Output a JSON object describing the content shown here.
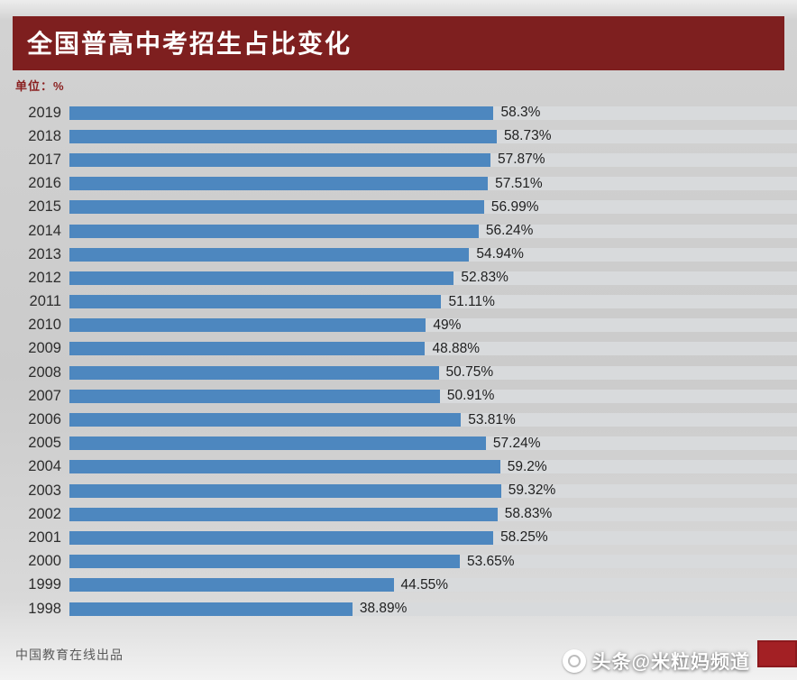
{
  "page": {
    "title": "全国普高中考招生占比变化",
    "unit_label": "单位：%",
    "footer": "中国教育在线出品",
    "watermark": "头条@米粒妈频道"
  },
  "colors": {
    "header_bg": "#7e1f1f",
    "unit_text": "#8a1f1f",
    "bar_color": "#4d87bf",
    "track_color": "#d8dadc",
    "stamp_color": "#a32024"
  },
  "chart_data": {
    "type": "bar",
    "orientation": "horizontal",
    "title": "全国普高中考招生占比变化",
    "unit": "%",
    "xlim": [
      0,
      100
    ],
    "grid": false,
    "legend": "none",
    "categories": [
      "2019",
      "2018",
      "2017",
      "2016",
      "2015",
      "2014",
      "2013",
      "2012",
      "2011",
      "2010",
      "2009",
      "2008",
      "2007",
      "2006",
      "2005",
      "2004",
      "2003",
      "2002",
      "2001",
      "2000",
      "1999",
      "1998"
    ],
    "values": [
      58.3,
      58.73,
      57.87,
      57.51,
      56.99,
      56.24,
      54.94,
      52.83,
      51.11,
      49,
      48.88,
      50.75,
      50.91,
      53.81,
      57.24,
      59.2,
      59.32,
      58.83,
      58.25,
      53.65,
      44.55,
      38.89
    ],
    "value_labels": [
      "58.3%",
      "58.73%",
      "57.87%",
      "57.51%",
      "56.99%",
      "56.24%",
      "54.94%",
      "52.83%",
      "51.11%",
      "49%",
      "48.88%",
      "50.75%",
      "50.91%",
      "53.81%",
      "57.24%",
      "59.2%",
      "59.32%",
      "58.83%",
      "58.25%",
      "53.65%",
      "44.55%",
      "38.89%"
    ]
  }
}
